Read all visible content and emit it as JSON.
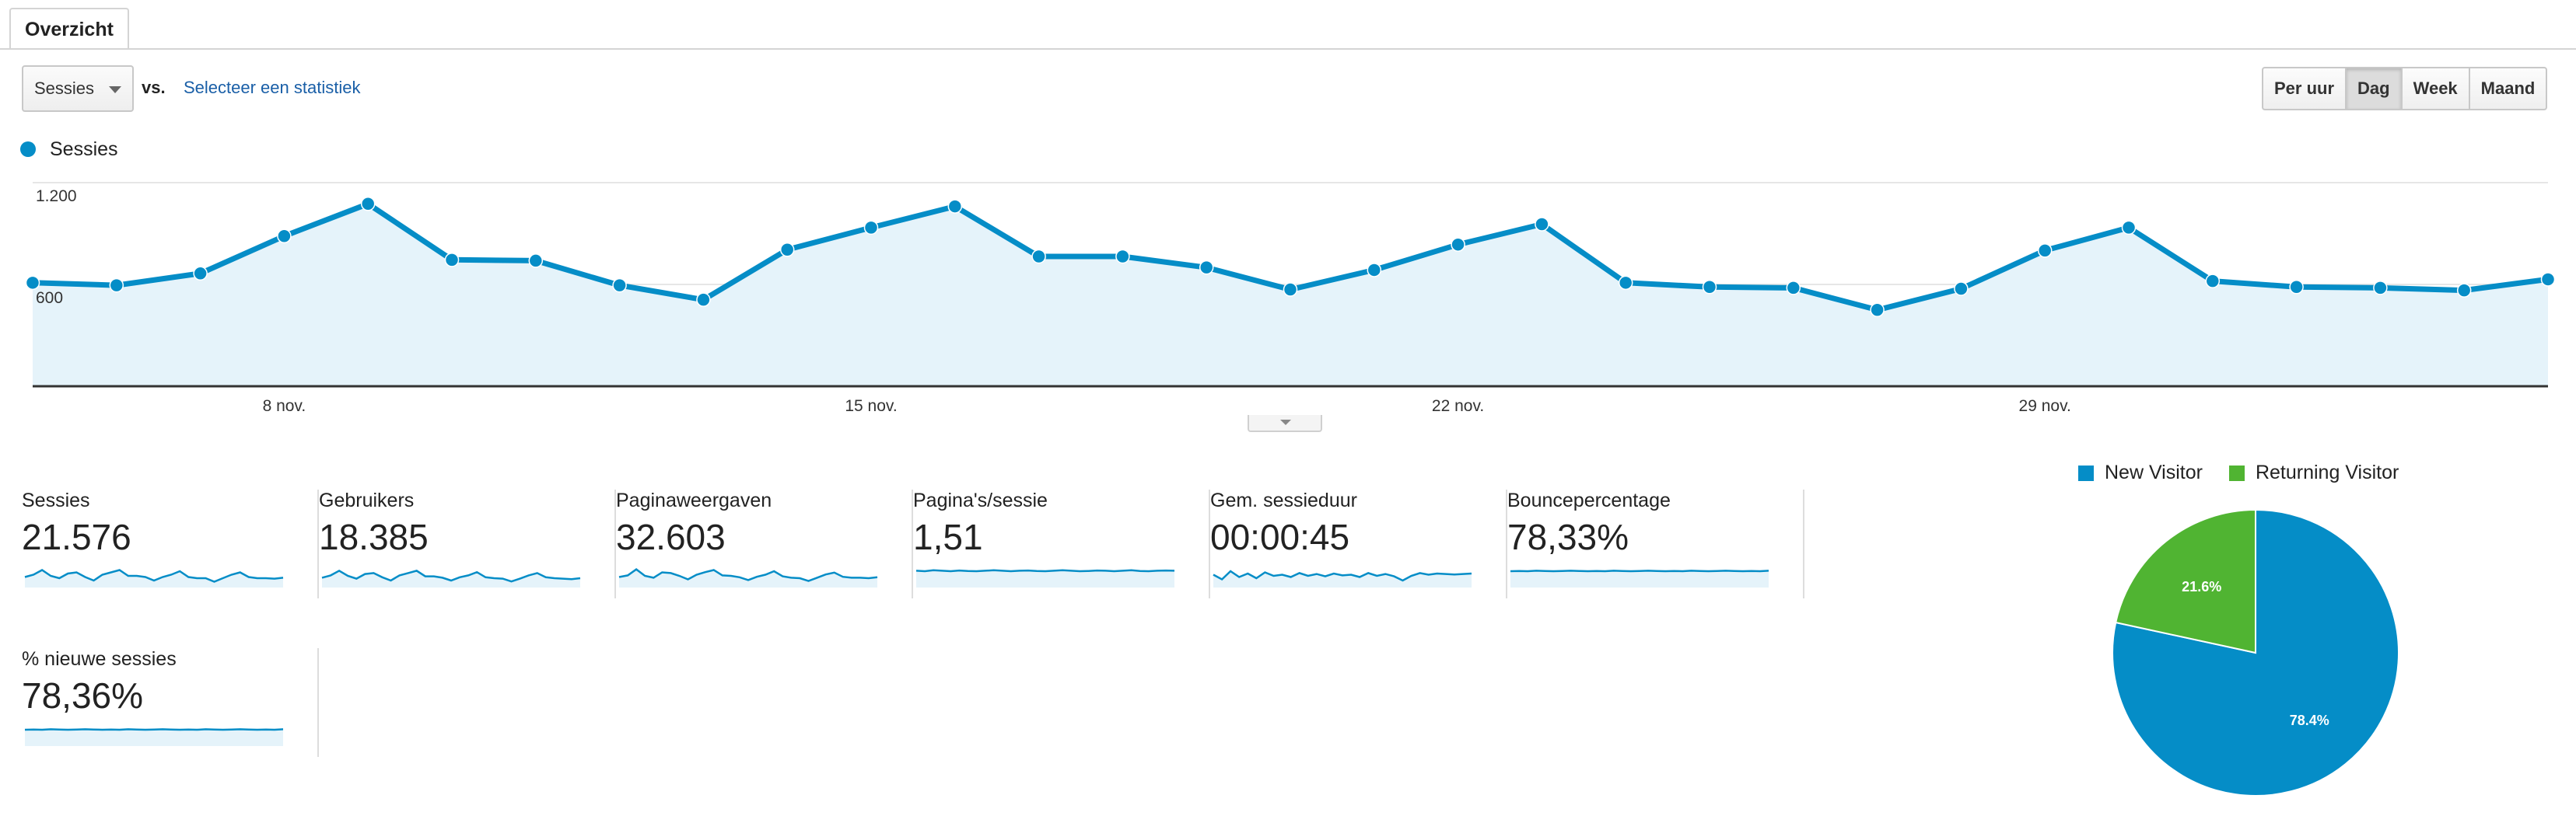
{
  "tabs": [
    {
      "label": "Overzicht",
      "active": true
    }
  ],
  "toolbar": {
    "metric_select": "Sessies",
    "vs_label": "vs.",
    "compare_link": "Selecteer een statistiek",
    "granularity": [
      "Per uur",
      "Dag",
      "Week",
      "Maand"
    ],
    "granularity_selected": "Dag"
  },
  "colors": {
    "primary": "#058dc7",
    "fill": "#e5f3fa",
    "green": "#50b432",
    "axis": "#333333",
    "grid": "#e6e6e6",
    "link": "#1a5fa7"
  },
  "chart_data": [
    {
      "type": "area",
      "series": [
        {
          "name": "Sessies",
          "values": [
            610,
            595,
            665,
            885,
            1075,
            745,
            740,
            595,
            510,
            805,
            935,
            1060,
            765,
            765,
            700,
            570,
            685,
            835,
            955,
            610,
            585,
            580,
            450,
            575,
            800,
            935,
            620,
            585,
            580,
            565,
            630
          ]
        }
      ],
      "x_tick_labels": [
        "8 nov.",
        "15 nov.",
        "22 nov.",
        "29 nov."
      ],
      "x_tick_indices": [
        3,
        10,
        17,
        24
      ],
      "y_tick_labels": [
        "1.200",
        "600"
      ],
      "y_tick_values": [
        1200,
        600
      ],
      "ylim": [
        0,
        1200
      ],
      "grid": true,
      "legend": "top-left"
    },
    {
      "type": "pie",
      "labels": [
        "New Visitor",
        "Returning Visitor"
      ],
      "values": [
        78.4,
        21.6
      ],
      "slice_labels": [
        "78.4%",
        "21.6%"
      ],
      "colors": [
        "#058dc7",
        "#50b432"
      ],
      "legend": "top"
    }
  ],
  "metrics": [
    {
      "label": "Sessies",
      "value": "21.576",
      "spark": [
        0.45,
        0.55,
        0.75,
        0.5,
        0.4,
        0.6,
        0.65,
        0.45,
        0.3,
        0.55,
        0.65,
        0.75,
        0.5,
        0.5,
        0.45,
        0.3,
        0.45,
        0.55,
        0.7,
        0.45,
        0.4,
        0.4,
        0.25,
        0.4,
        0.55,
        0.65,
        0.45,
        0.4,
        0.4,
        0.38,
        0.42
      ]
    },
    {
      "label": "Gebruikers",
      "value": "18.385",
      "spark": [
        0.42,
        0.52,
        0.72,
        0.5,
        0.38,
        0.58,
        0.62,
        0.44,
        0.3,
        0.52,
        0.62,
        0.72,
        0.48,
        0.48,
        0.42,
        0.3,
        0.44,
        0.52,
        0.66,
        0.44,
        0.4,
        0.38,
        0.26,
        0.38,
        0.52,
        0.62,
        0.44,
        0.4,
        0.38,
        0.36,
        0.4
      ]
    },
    {
      "label": "Paginaweergaven",
      "value": "32.603",
      "spark": [
        0.45,
        0.52,
        0.78,
        0.5,
        0.42,
        0.65,
        0.62,
        0.5,
        0.35,
        0.55,
        0.66,
        0.75,
        0.52,
        0.5,
        0.44,
        0.32,
        0.46,
        0.55,
        0.7,
        0.48,
        0.42,
        0.4,
        0.28,
        0.42,
        0.56,
        0.64,
        0.46,
        0.42,
        0.42,
        0.4,
        0.44
      ]
    },
    {
      "label": "Pagina's/sessie",
      "value": "1,51",
      "spark": [
        0.72,
        0.7,
        0.74,
        0.72,
        0.7,
        0.73,
        0.71,
        0.7,
        0.72,
        0.74,
        0.72,
        0.7,
        0.72,
        0.73,
        0.71,
        0.7,
        0.72,
        0.74,
        0.72,
        0.7,
        0.71,
        0.73,
        0.72,
        0.7,
        0.72,
        0.74,
        0.71,
        0.7,
        0.72,
        0.73,
        0.72
      ]
    },
    {
      "label": "Gem. sessieduur",
      "value": "00:00:45",
      "spark": [
        0.55,
        0.35,
        0.7,
        0.45,
        0.6,
        0.4,
        0.65,
        0.5,
        0.55,
        0.45,
        0.62,
        0.5,
        0.58,
        0.48,
        0.6,
        0.52,
        0.55,
        0.45,
        0.62,
        0.5,
        0.58,
        0.48,
        0.3,
        0.5,
        0.62,
        0.55,
        0.6,
        0.58,
        0.56,
        0.58,
        0.6
      ]
    },
    {
      "label": "Bouncepercentage",
      "value": "78,33%",
      "spark": [
        0.7,
        0.71,
        0.7,
        0.72,
        0.71,
        0.7,
        0.71,
        0.72,
        0.71,
        0.7,
        0.71,
        0.7,
        0.72,
        0.71,
        0.7,
        0.71,
        0.72,
        0.71,
        0.7,
        0.71,
        0.7,
        0.72,
        0.71,
        0.7,
        0.71,
        0.72,
        0.71,
        0.7,
        0.71,
        0.7,
        0.72
      ]
    },
    {
      "label": "% nieuwe sessies",
      "value": "78,36%",
      "spark": [
        0.7,
        0.71,
        0.7,
        0.72,
        0.71,
        0.7,
        0.71,
        0.72,
        0.71,
        0.7,
        0.71,
        0.7,
        0.72,
        0.71,
        0.7,
        0.71,
        0.72,
        0.71,
        0.7,
        0.71,
        0.7,
        0.72,
        0.71,
        0.7,
        0.71,
        0.72,
        0.71,
        0.7,
        0.71,
        0.7,
        0.72
      ]
    }
  ]
}
